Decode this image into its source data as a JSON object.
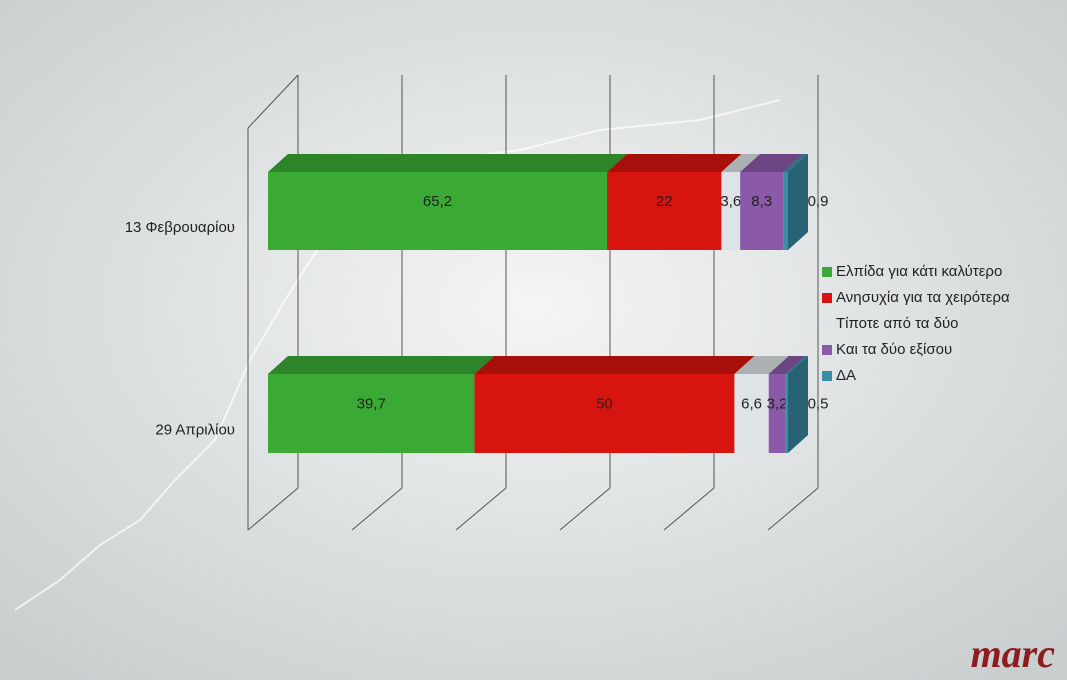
{
  "chart_data": {
    "type": "stacked-bar-3d",
    "categories": [
      "13 Φεβρουαρίου",
      "29 Απριλίου"
    ],
    "series": [
      {
        "name": "Ελπίδα για κάτι καλύτερο",
        "color": "#3aaa35",
        "values": [
          65.2,
          39.7
        ],
        "value_labels": [
          "65,2",
          "39,7"
        ]
      },
      {
        "name": "Ανησυχία για τα χειρότερα",
        "color": "#d7140f",
        "values": [
          22,
          50
        ]
      },
      {
        "name": "Τίποτε από τα δύο",
        "color": "#dde3e6",
        "values": [
          3.6,
          6.6
        ],
        "value_labels": [
          "3,6",
          "6,6"
        ]
      },
      {
        "name": "Και τα δύο εξίσου",
        "color": "#8a5aa8",
        "values": [
          8.3,
          3.2
        ],
        "value_labels": [
          "8,3",
          "3,2"
        ]
      },
      {
        "name": "ΔΑ",
        "color": "#3a8fa8",
        "values": [
          0.9,
          0.5
        ],
        "value_labels": [
          "0,9",
          "0,5"
        ]
      }
    ],
    "xlim": [
      0,
      100
    ],
    "xticks": [
      0,
      20,
      40,
      60,
      80,
      100
    ],
    "grid": true,
    "legend": "right",
    "brand": "marc"
  }
}
